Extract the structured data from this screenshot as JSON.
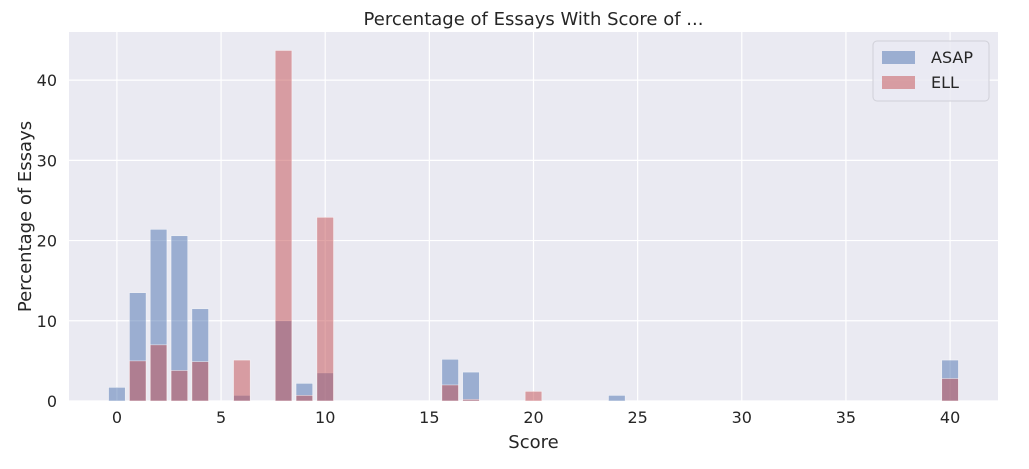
{
  "chart_data": {
    "type": "bar",
    "title": "Percentage of Essays With Score of ...",
    "xlabel": "Score",
    "ylabel": "Percentage of Essays",
    "xlim": [
      -2.3,
      42.3
    ],
    "ylim": [
      0,
      46
    ],
    "xticks": [
      0,
      5,
      10,
      15,
      20,
      25,
      30,
      35,
      40
    ],
    "yticks": [
      0,
      10,
      20,
      30,
      40
    ],
    "bar_width": 0.8,
    "grid": true,
    "legend_position": "top-right",
    "series": [
      {
        "name": "ASAP",
        "color": "#4c72b0",
        "opacity": 0.5,
        "points": [
          {
            "x": 0,
            "y": 1.7
          },
          {
            "x": 1,
            "y": 13.5
          },
          {
            "x": 2,
            "y": 21.4
          },
          {
            "x": 3,
            "y": 20.6
          },
          {
            "x": 4,
            "y": 11.5
          },
          {
            "x": 6,
            "y": 0.7
          },
          {
            "x": 8,
            "y": 10.0
          },
          {
            "x": 9,
            "y": 2.2
          },
          {
            "x": 10,
            "y": 3.5
          },
          {
            "x": 16,
            "y": 5.2
          },
          {
            "x": 17,
            "y": 3.6
          },
          {
            "x": 24,
            "y": 0.7
          },
          {
            "x": 40,
            "y": 5.1
          }
        ]
      },
      {
        "name": "ELL",
        "color": "#c44e52",
        "opacity": 0.5,
        "points": [
          {
            "x": 1,
            "y": 5.0
          },
          {
            "x": 2,
            "y": 7.0
          },
          {
            "x": 3,
            "y": 3.8
          },
          {
            "x": 4,
            "y": 4.9
          },
          {
            "x": 6,
            "y": 5.1
          },
          {
            "x": 8,
            "y": 43.7
          },
          {
            "x": 9,
            "y": 0.7
          },
          {
            "x": 10,
            "y": 22.9
          },
          {
            "x": 16,
            "y": 2.0
          },
          {
            "x": 17,
            "y": 0.2
          },
          {
            "x": 20,
            "y": 1.2
          },
          {
            "x": 40,
            "y": 2.8
          }
        ]
      }
    ]
  }
}
